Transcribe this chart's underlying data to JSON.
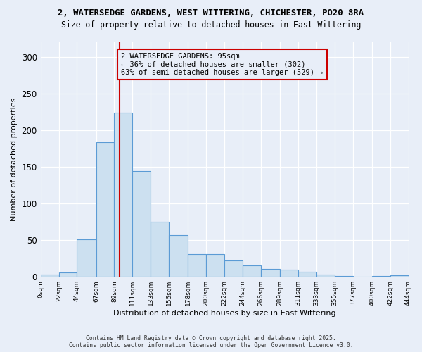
{
  "title_line1": "2, WATERSEDGE GARDENS, WEST WITTERING, CHICHESTER, PO20 8RA",
  "title_line2": "Size of property relative to detached houses in East Wittering",
  "xlabel": "Distribution of detached houses by size in East Wittering",
  "ylabel": "Number of detached properties",
  "bar_color": "#cce0f0",
  "bar_edge_color": "#5b9bd5",
  "annotation_box_color": "#cc0000",
  "vline_color": "#cc0000",
  "vline_x": 95,
  "annotation_title": "2 WATERSEDGE GARDENS: 95sqm",
  "annotation_line2": "← 36% of detached houses are smaller (302)",
  "annotation_line3": "63% of semi-detached houses are larger (529) →",
  "footer_line1": "Contains HM Land Registry data © Crown copyright and database right 2025.",
  "footer_line2": "Contains public sector information licensed under the Open Government Licence v3.0.",
  "bin_edges": [
    0,
    22,
    44,
    67,
    89,
    111,
    133,
    155,
    178,
    200,
    222,
    244,
    266,
    289,
    311,
    333,
    355,
    377,
    400,
    422,
    444
  ],
  "bin_labels": [
    "0sqm",
    "22sqm",
    "44sqm",
    "67sqm",
    "89sqm",
    "111sqm",
    "133sqm",
    "155sqm",
    "178sqm",
    "200sqm",
    "222sqm",
    "244sqm",
    "266sqm",
    "289sqm",
    "311sqm",
    "333sqm",
    "355sqm",
    "377sqm",
    "400sqm",
    "422sqm",
    "444sqm"
  ],
  "counts": [
    3,
    6,
    51,
    184,
    224,
    144,
    75,
    57,
    31,
    31,
    22,
    16,
    11,
    10,
    7,
    3,
    1,
    0,
    1,
    2
  ],
  "ylim": [
    0,
    320
  ],
  "background_color": "#e8eef8",
  "grid_color": "#ffffff"
}
